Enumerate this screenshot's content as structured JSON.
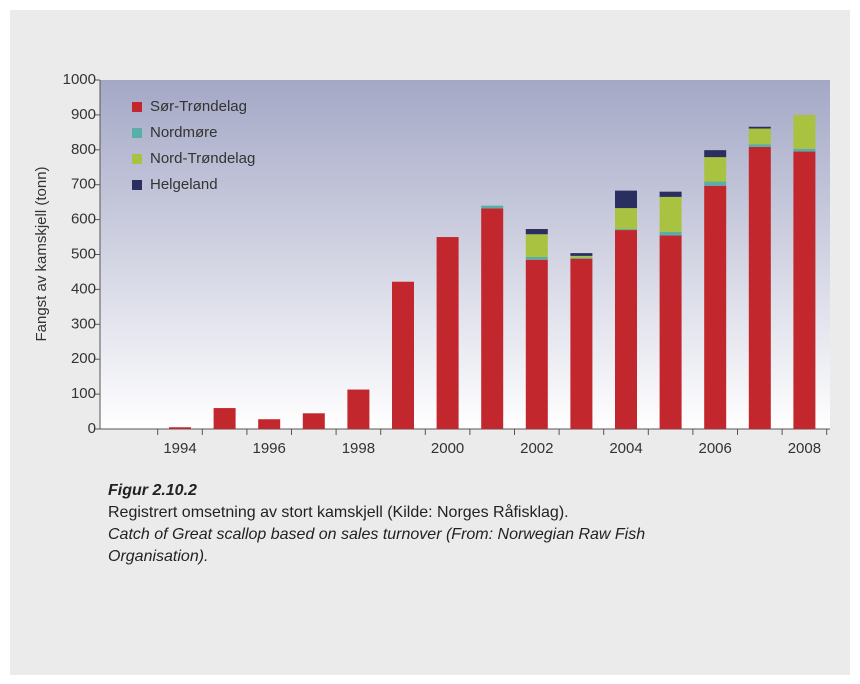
{
  "chart_data": {
    "type": "stacked_bar",
    "y_label": "Fangst av kamskjell (tonn)",
    "categories": [
      "1994",
      null,
      "1996",
      null,
      "1998",
      null,
      "2000",
      null,
      "2002",
      null,
      "2004",
      null,
      "2006",
      null,
      "2008"
    ],
    "series": [
      {
        "name": "Sør-Trøndelag",
        "color": "#c1272d",
        "values": [
          5,
          60,
          28,
          45,
          113,
          422,
          550,
          632,
          485,
          488,
          570,
          555,
          697,
          808,
          795
        ]
      },
      {
        "name": "Nordmøre",
        "color": "#5aaea8",
        "values": [
          0,
          0,
          0,
          0,
          0,
          0,
          0,
          8,
          8,
          3,
          3,
          10,
          12,
          8,
          8
        ]
      },
      {
        "name": "Nord-Trøndelag",
        "color": "#a9c23f",
        "values": [
          0,
          0,
          0,
          0,
          0,
          0,
          0,
          0,
          65,
          5,
          60,
          100,
          70,
          45,
          97
        ]
      },
      {
        "name": "Helgeland",
        "color": "#2b2f5f",
        "values": [
          0,
          0,
          0,
          0,
          0,
          0,
          0,
          0,
          15,
          8,
          50,
          15,
          20,
          5,
          0
        ]
      }
    ],
    "ylim": [
      0,
      1000
    ],
    "yticks": [
      0,
      100,
      200,
      300,
      400,
      500,
      600,
      700,
      800,
      900,
      1000
    ],
    "legend": "top-left"
  },
  "caption": {
    "figure": "Figur 2.10.2",
    "text": "Registrert omsetning av stort kamskjell (Kilde: Norges Råfisklag).",
    "text_en": "Catch of Great scallop based on sales turnover (From: Norwegian Raw Fish Organisation)."
  }
}
